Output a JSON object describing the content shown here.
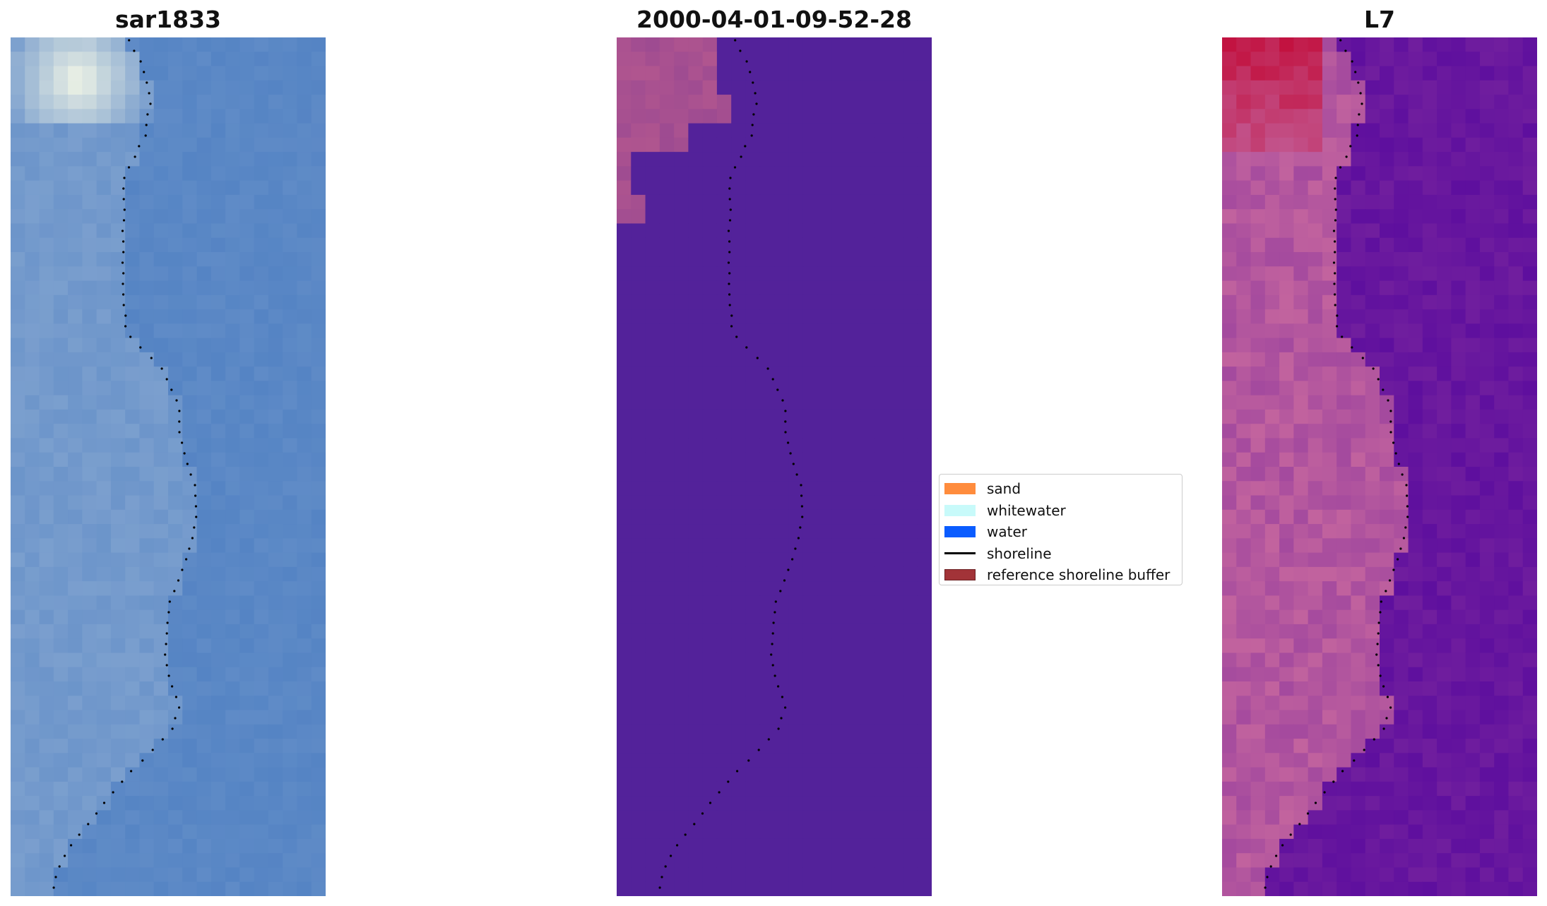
{
  "panels": [
    {
      "title": "sar1833"
    },
    {
      "title": "2000-04-01-09-52-28"
    },
    {
      "title": "L7"
    }
  ],
  "legend": {
    "items": [
      {
        "label": "sand",
        "kind": "patch",
        "color": "#ff8c3d"
      },
      {
        "label": "whitewater",
        "kind": "patch",
        "color": "#c8fafa"
      },
      {
        "label": "water",
        "kind": "patch",
        "color": "#0a5cff"
      },
      {
        "label": "shoreline",
        "kind": "line",
        "color": "#000000"
      },
      {
        "label": "reference shoreline buffer",
        "kind": "patch",
        "color": "#a23338"
      }
    ]
  },
  "colors": {
    "rgb_water": "#5584c4",
    "rgb_land": "#7fa2cf",
    "rgb_bright": "#f2f6e6",
    "class_background": "#53229a",
    "class_land": "#b0558f",
    "ndwi_water": "#5e0f9e",
    "ndwi_land": "#c2639e",
    "ndwi_high": "#c20a36",
    "shoreline_dot": "#000000"
  }
}
